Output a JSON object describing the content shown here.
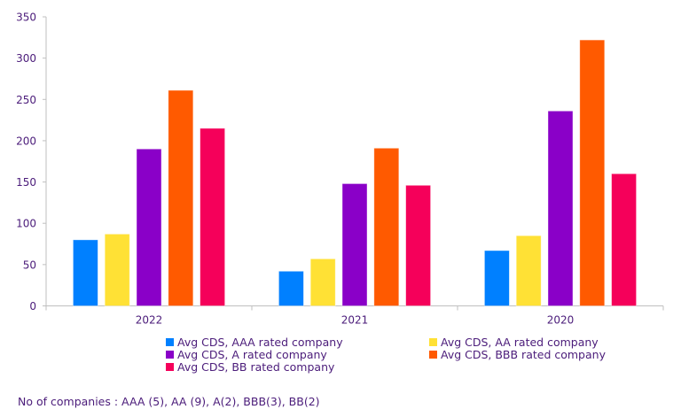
{
  "chart_data": {
    "type": "bar",
    "title": "",
    "xlabel": "",
    "ylabel": "",
    "categories": [
      "2022",
      "2021",
      "2020"
    ],
    "ylim": [
      0,
      350
    ],
    "yticks": [
      0,
      50,
      100,
      150,
      200,
      250,
      300,
      350
    ],
    "grid": false,
    "legend_position": "bottom",
    "series": [
      {
        "name": "Avg CDS, AAA rated company",
        "color": "#0080ff",
        "values": [
          80,
          42,
          67
        ]
      },
      {
        "name": "Avg CDS, AA rated company",
        "color": "#ffe135",
        "values": [
          87,
          57,
          85
        ]
      },
      {
        "name": "Avg CDS, A rated company",
        "color": "#8a00c8",
        "values": [
          190,
          148,
          236
        ]
      },
      {
        "name": "Avg CDS, BBB rated company",
        "color": "#ff5a00",
        "values": [
          261,
          191,
          322
        ]
      },
      {
        "name": "Avg CDS, BB rated company",
        "color": "#f5005a",
        "values": [
          215,
          146,
          160
        ]
      }
    ],
    "footnote": "No of companies : AAA (5), AA (9), A(2), BBB(3), BB(2)"
  }
}
